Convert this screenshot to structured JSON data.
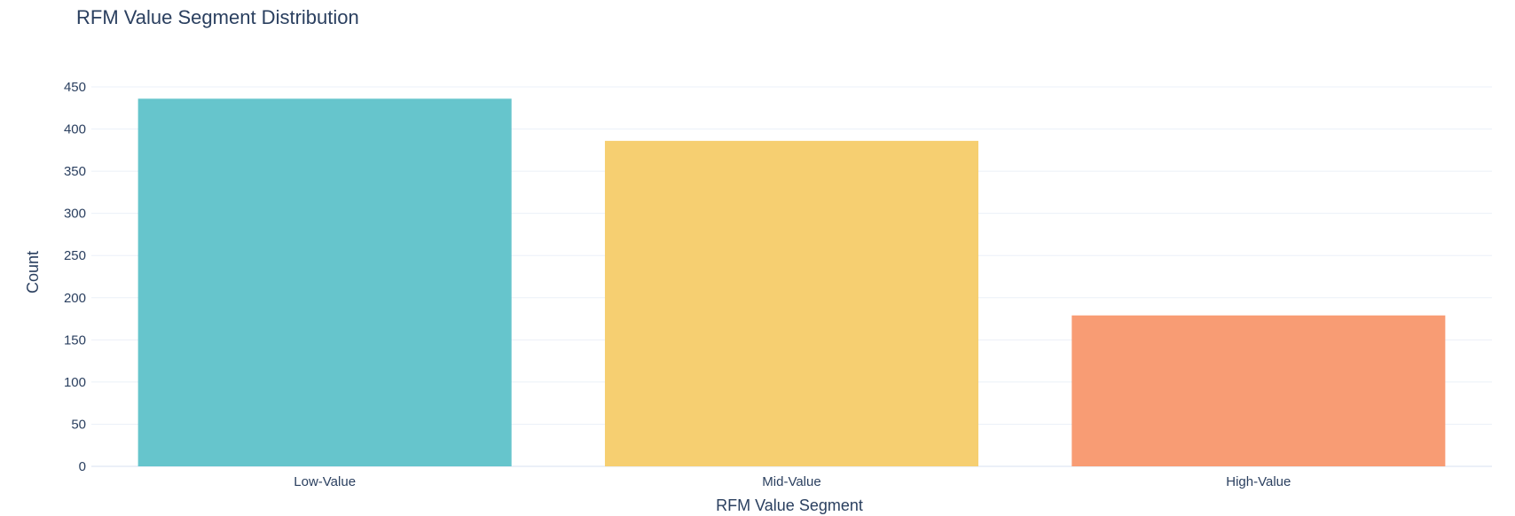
{
  "chart_data": {
    "type": "bar",
    "title": "RFM Value Segment Distribution",
    "xlabel": "RFM Value Segment",
    "ylabel": "Count",
    "categories": [
      "Low-Value",
      "Mid-Value",
      "High-Value"
    ],
    "values": [
      436,
      386,
      179
    ],
    "colors": [
      "#66c5cc",
      "#f6cf71",
      "#f89c74"
    ],
    "ylim": [
      0,
      450
    ],
    "yticks": [
      0,
      50,
      100,
      150,
      200,
      250,
      300,
      350,
      400,
      450
    ],
    "grid": true,
    "legend": "none"
  }
}
